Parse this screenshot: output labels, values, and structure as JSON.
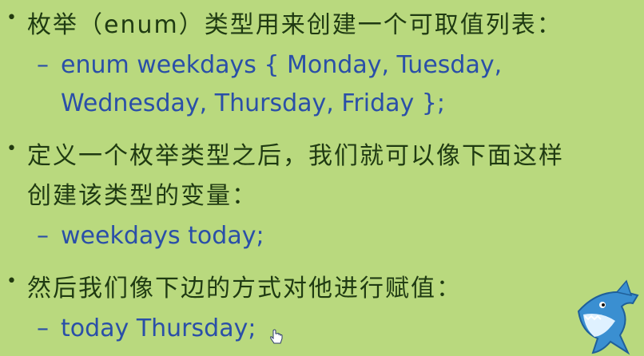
{
  "bullets": [
    {
      "text": "枚举（enum）类型用来创建一个可取值列表：",
      "sub": [
        {
          "line1": "enum  weekdays { Monday, Tuesday,",
          "line2": "Wednesday, Thursday, Friday };"
        }
      ]
    },
    {
      "line1": "定义一个枚举类型之后，我们就可以像下面这样",
      "line2": "创建该类型的变量：",
      "sub": [
        {
          "line1": "weekdays  today;"
        }
      ]
    },
    {
      "text": "然后我们像下边的方式对他进行赋值：",
      "sub": [
        {
          "line1": "today  Thursday;"
        }
      ]
    }
  ],
  "glyphs": {
    "bullet": "•",
    "dash": "–"
  },
  "icons": {
    "cursor": "hand-pointer-icon",
    "mascot": "shark-mascot"
  },
  "colors": {
    "background": "#b9d97e",
    "chinese_text": "#1f3a12",
    "code_text": "#2a4fa8"
  }
}
